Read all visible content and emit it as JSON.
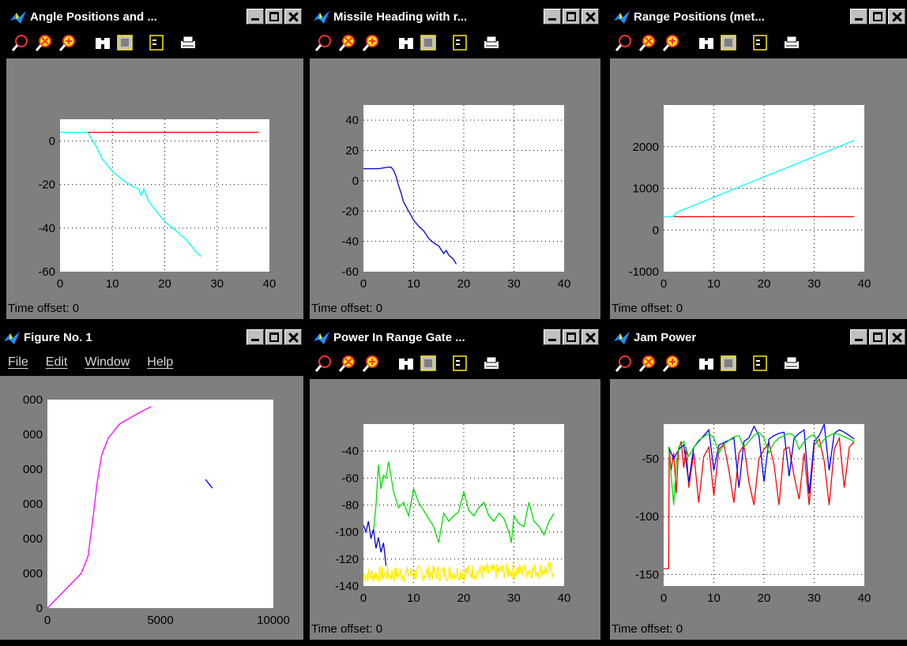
{
  "windows": [
    {
      "id": "angle",
      "title": "Angle Positions and ...",
      "toolbar": true,
      "time_offset": "Time offset:  0"
    },
    {
      "id": "heading",
      "title": "Missile Heading with r...",
      "toolbar": true,
      "time_offset": "Time offset:  0"
    },
    {
      "id": "range",
      "title": "Range Positions (met...",
      "toolbar": true,
      "time_offset": "Time offset:  0"
    },
    {
      "id": "fig1",
      "title": "Figure No. 1",
      "toolbar": false,
      "menu": [
        "File",
        "Edit",
        "Window",
        "Help"
      ]
    },
    {
      "id": "power",
      "title": "Power In Range Gate ...",
      "toolbar": true,
      "time_offset": "Time offset:  0"
    },
    {
      "id": "jam",
      "title": "Jam Power",
      "toolbar": true,
      "time_offset": "Time offset:  0"
    }
  ],
  "toolbar_icons": [
    "zoom-icon",
    "zoom-in-icon",
    "zoom-out-icon",
    "binoculars-icon",
    "axes-icon",
    "legend-icon",
    "print-icon"
  ],
  "chart_data": [
    {
      "id": "angle",
      "type": "line",
      "xlim": [
        0,
        40
      ],
      "ylim": [
        -60,
        10
      ],
      "xticks": [
        0,
        10,
        20,
        30,
        40
      ],
      "yticks": [
        -60,
        -40,
        -20,
        0
      ],
      "ytick_labels": [
        "-60",
        "-40",
        "-20",
        "0"
      ],
      "grid": true,
      "series": [
        {
          "color": "#ff0000",
          "x": [
            5,
            38
          ],
          "y": [
            4,
            4
          ]
        },
        {
          "color": "#00ffff",
          "x": [
            0,
            5.3,
            6,
            7,
            8,
            9,
            10,
            12,
            14,
            15,
            15.5,
            16,
            17,
            18,
            19,
            20,
            21,
            22,
            23,
            24,
            25,
            26,
            27
          ],
          "y": [
            4,
            4,
            1,
            -3,
            -8,
            -11,
            -14,
            -18,
            -21,
            -22,
            -25,
            -22,
            -28,
            -31,
            -34,
            -37,
            -39,
            -41,
            -43,
            -45,
            -48,
            -51,
            -53
          ]
        }
      ]
    },
    {
      "id": "heading",
      "type": "line",
      "xlim": [
        0,
        40
      ],
      "ylim": [
        -60,
        50
      ],
      "xticks": [
        0,
        10,
        20,
        30,
        40
      ],
      "yticks": [
        -60,
        -40,
        -20,
        0,
        20,
        40
      ],
      "ytick_labels": [
        "-60",
        "-40",
        "-20",
        "0",
        "20",
        "40"
      ],
      "grid": true,
      "series": [
        {
          "color": "#0000cc",
          "x": [
            0,
            3,
            5,
            5.5,
            6,
            6.5,
            7,
            7.5,
            8,
            9,
            10,
            11,
            12,
            13,
            14,
            15,
            16,
            16.5,
            17,
            18,
            18.5
          ],
          "y": [
            8,
            8,
            9,
            9,
            7,
            3,
            -3,
            -8,
            -14,
            -20,
            -26,
            -30,
            -33,
            -38,
            -41,
            -43,
            -48,
            -46,
            -49,
            -52,
            -55
          ]
        }
      ]
    },
    {
      "id": "range",
      "type": "line",
      "xlim": [
        0,
        40
      ],
      "ylim": [
        -1000,
        3000
      ],
      "xticks": [
        0,
        10,
        20,
        30,
        40
      ],
      "yticks": [
        -1000,
        0,
        1000,
        2000
      ],
      "ytick_labels": [
        "-1000",
        "0",
        "1000",
        "2000"
      ],
      "grid": true,
      "series": [
        {
          "color": "#ff0000",
          "x": [
            2,
            38
          ],
          "y": [
            320,
            320
          ]
        },
        {
          "color": "#00ffff",
          "x": [
            0,
            2,
            2.5,
            38
          ],
          "y": [
            310,
            330,
            420,
            2150
          ]
        }
      ]
    },
    {
      "id": "fig1",
      "type": "line",
      "xlim": [
        0,
        10000
      ],
      "ylim": [
        0,
        6000
      ],
      "xticks": [
        0,
        5000,
        10000
      ],
      "yticks": [
        0,
        1000,
        2000,
        3000,
        4000,
        5000,
        6000
      ],
      "ytick_labels": [
        "0",
        "000",
        "000",
        "000",
        "000",
        "000",
        "000"
      ],
      "grid": false,
      "series": [
        {
          "color": "#ff00ff",
          "x": [
            0,
            1500,
            1800,
            2000,
            2200,
            2400,
            2700,
            3200,
            4000,
            4600
          ],
          "y": [
            0,
            1000,
            1500,
            2500,
            3600,
            4400,
            4900,
            5300,
            5600,
            5800
          ]
        },
        {
          "color": "#0000ff",
          "x": [
            7000,
            7300
          ],
          "y": [
            3700,
            3450
          ]
        }
      ]
    },
    {
      "id": "power",
      "type": "line",
      "xlim": [
        0,
        40
      ],
      "ylim": [
        -140,
        -20
      ],
      "xticks": [
        0,
        10,
        20,
        30,
        40
      ],
      "yticks": [
        -140,
        -120,
        -100,
        -80,
        -60,
        -40
      ],
      "ytick_labels": [
        "-140",
        "-120",
        "-100",
        "-80",
        "-60",
        "-40"
      ],
      "grid": true,
      "series": [
        {
          "color": "#00dd00",
          "x": [
            2,
            2.5,
            3,
            3.5,
            4,
            4.5,
            5,
            6,
            7,
            8,
            9,
            10,
            11,
            12,
            13,
            14,
            15,
            16,
            17,
            18,
            19,
            20,
            21,
            22,
            23,
            24,
            25,
            26,
            27,
            28,
            29,
            29.5,
            30,
            31,
            32,
            33,
            34,
            35,
            36,
            37,
            38
          ],
          "y": [
            -100,
            -80,
            -50,
            -68,
            -58,
            -60,
            -48,
            -70,
            -82,
            -78,
            -88,
            -68,
            -78,
            -84,
            -90,
            -96,
            -108,
            -86,
            -92,
            -88,
            -85,
            -70,
            -84,
            -88,
            -82,
            -78,
            -88,
            -92,
            -86,
            -90,
            -100,
            -108,
            -88,
            -94,
            -96,
            -78,
            -92,
            -96,
            -102,
            -92,
            -86
          ]
        },
        {
          "color": "#0000cc",
          "x": [
            0,
            0.5,
            1,
            1.5,
            2,
            2.5,
            3,
            3.5,
            4,
            4.5
          ],
          "y": [
            -95,
            -100,
            -92,
            -105,
            -98,
            -112,
            -104,
            -115,
            -108,
            -125
          ]
        },
        {
          "color": "#ffee00",
          "x": [
            0,
            38
          ],
          "y": [
            -132,
            -128
          ],
          "noise": 6
        }
      ]
    },
    {
      "id": "jam",
      "type": "line",
      "xlim": [
        0,
        40
      ],
      "ylim": [
        -160,
        -20
      ],
      "xticks": [
        0,
        10,
        20,
        30,
        40
      ],
      "yticks": [
        -150,
        -100,
        -50
      ],
      "ytick_labels": [
        "-150",
        "-100",
        "-50"
      ],
      "grid": true,
      "series": [
        {
          "color": "#ff0000",
          "x": [
            0,
            1,
            1.1,
            1.5,
            2,
            2.5,
            3,
            3.5,
            4,
            4.5,
            5,
            6,
            7,
            8,
            9,
            10,
            11,
            12,
            13,
            14,
            15,
            16,
            17,
            18,
            19,
            20,
            21,
            22,
            23,
            24,
            25,
            26,
            27,
            28,
            29,
            30,
            31,
            32,
            33,
            34,
            35,
            36,
            37,
            38
          ],
          "y": [
            -145,
            -145,
            -40,
            -60,
            -45,
            -80,
            -42,
            -35,
            -58,
            -40,
            -75,
            -45,
            -88,
            -48,
            -40,
            -82,
            -42,
            -37,
            -60,
            -88,
            -45,
            -38,
            -70,
            -90,
            -50,
            -42,
            -36,
            -55,
            -90,
            -42,
            -40,
            -65,
            -85,
            -45,
            -90,
            -38,
            -33,
            -52,
            -90,
            -42,
            -32,
            -75,
            -40,
            -35
          ]
        },
        {
          "color": "#0000ff",
          "x": [
            1,
            2,
            3,
            4,
            5,
            6,
            7,
            8,
            9,
            10,
            11,
            12,
            13,
            14,
            15,
            16,
            17,
            18,
            19,
            20,
            21,
            22,
            23,
            24,
            25,
            26,
            27,
            28,
            29,
            30,
            31,
            32,
            33,
            34,
            35,
            36,
            37,
            38
          ],
          "y": [
            -40,
            -50,
            -42,
            -38,
            -70,
            -40,
            -35,
            -30,
            -25,
            -60,
            -38,
            -36,
            -34,
            -32,
            -75,
            -35,
            -32,
            -22,
            -30,
            -70,
            -33,
            -30,
            -28,
            -27,
            -65,
            -32,
            -28,
            -25,
            -80,
            -35,
            -30,
            -20,
            -60,
            -28,
            -25,
            -27,
            -30,
            -33
          ]
        },
        {
          "color": "#00dd00",
          "x": [
            1,
            2,
            2.5,
            3,
            4,
            5,
            6,
            7,
            8,
            9,
            10,
            11,
            12,
            13,
            14,
            15,
            16,
            17,
            18,
            19,
            20,
            21,
            22,
            23,
            24,
            25,
            26,
            27,
            28,
            29,
            30,
            31,
            32,
            33,
            34,
            35,
            36,
            37,
            38
          ],
          "y": [
            -40,
            -90,
            -55,
            -40,
            -35,
            -48,
            -40,
            -34,
            -31,
            -28,
            -32,
            -45,
            -38,
            -34,
            -31,
            -30,
            -40,
            -35,
            -30,
            -27,
            -32,
            -45,
            -36,
            -32,
            -30,
            -28,
            -30,
            -42,
            -35,
            -31,
            -29,
            -40,
            -33,
            -30,
            -28,
            -29,
            -31,
            -33,
            -35
          ]
        }
      ]
    }
  ]
}
